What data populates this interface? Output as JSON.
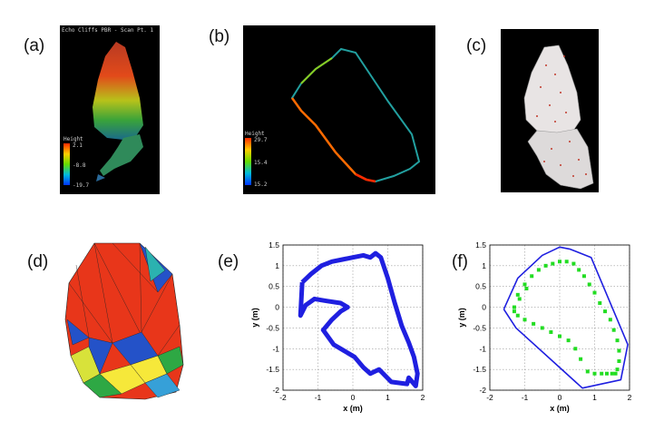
{
  "figure": {
    "panels": [
      {
        "label": "(a)",
        "title": "Echo Cliffs PBR - Scan Pt. 1",
        "colorbar": {
          "label": "Height",
          "ticks": [
            "2.1",
            "-8.8",
            "-19.7"
          ]
        }
      },
      {
        "label": "(b)",
        "colorbar": {
          "label": "Height",
          "ticks": [
            "29.7",
            "15.4",
            "15.2"
          ]
        }
      },
      {
        "label": "(c)"
      },
      {
        "label": "(d)"
      },
      {
        "label": "(e)"
      },
      {
        "label": "(f)"
      }
    ]
  },
  "chart_data": [
    {
      "type": "line",
      "panel": "(e)",
      "xlabel": "x (m)",
      "ylabel": "y (m)",
      "xlim": [
        -2,
        2
      ],
      "ylim": [
        -2,
        1.5
      ],
      "xticks": [
        -2,
        -1,
        0,
        1,
        2
      ],
      "yticks": [
        1.5,
        1,
        0.5,
        0,
        -0.5,
        -1,
        -1.5,
        -2
      ],
      "grid": true,
      "series": [
        {
          "color": "#1f1fe0",
          "x": [
            -1.45,
            -1.2,
            -0.9,
            -0.6,
            -0.3,
            0.0,
            0.3,
            0.5,
            0.65,
            0.8,
            1.0,
            1.2,
            1.4,
            1.6,
            1.75,
            1.85,
            1.8,
            1.7,
            1.6,
            1.55,
            1.1,
            0.75,
            0.5,
            0.3,
            0.05,
            -0.25,
            -0.55,
            -0.85,
            -0.6,
            -0.35,
            -0.15,
            -0.35,
            -0.75,
            -1.1,
            -1.35,
            -1.5,
            -1.45
          ],
          "y": [
            0.6,
            0.8,
            1.0,
            1.1,
            1.15,
            1.2,
            1.25,
            1.2,
            1.3,
            1.2,
            0.7,
            0.1,
            -0.45,
            -0.85,
            -1.2,
            -1.6,
            -1.9,
            -1.8,
            -1.7,
            -1.85,
            -1.8,
            -1.5,
            -1.6,
            -1.45,
            -1.2,
            -1.05,
            -0.9,
            -0.55,
            -0.3,
            -0.1,
            0.0,
            0.1,
            0.15,
            0.2,
            0.05,
            -0.2,
            0.6
          ]
        }
      ]
    },
    {
      "type": "scatter",
      "panel": "(f)",
      "xlabel": "x (m)",
      "ylabel": "y (m)",
      "xlim": [
        -2,
        2
      ],
      "ylim": [
        -2,
        1.5
      ],
      "xticks": [
        -2,
        -1,
        0,
        1,
        2
      ],
      "yticks": [
        1.5,
        1,
        0.5,
        0,
        -0.5,
        -1,
        -1.5,
        -2
      ],
      "grid": true,
      "series": [
        {
          "type": "line",
          "color": "#1f1fe0",
          "x": [
            -1.6,
            -1.2,
            -0.5,
            0.0,
            0.3,
            0.9,
            1.6,
            1.95,
            1.75,
            0.65,
            -1.25,
            -1.6
          ],
          "y": [
            -0.05,
            0.7,
            1.25,
            1.45,
            1.4,
            1.2,
            -0.2,
            -0.9,
            -1.75,
            -1.95,
            -0.5,
            -0.05
          ]
        },
        {
          "type": "scatter",
          "color": "#22dd22",
          "x": [
            -1.3,
            -1.2,
            -1.0,
            -0.8,
            -0.6,
            -0.4,
            -0.2,
            0.0,
            0.2,
            0.4,
            0.55,
            0.7,
            0.85,
            1.0,
            1.15,
            1.3,
            1.45,
            1.55,
            1.65,
            1.7,
            1.7,
            1.65,
            1.6,
            1.5,
            1.35,
            1.2,
            1.0,
            0.8,
            0.6,
            0.45,
            0.25,
            0.0,
            -0.25,
            -0.5,
            -0.75,
            -1.0,
            -1.2,
            -1.3,
            -1.15,
            -0.95
          ],
          "y": [
            0.0,
            0.3,
            0.55,
            0.75,
            0.9,
            1.0,
            1.05,
            1.1,
            1.1,
            1.05,
            0.9,
            0.75,
            0.55,
            0.35,
            0.1,
            -0.1,
            -0.3,
            -0.55,
            -0.8,
            -1.05,
            -1.3,
            -1.5,
            -1.6,
            -1.6,
            -1.6,
            -1.6,
            -1.6,
            -1.55,
            -1.25,
            -1.0,
            -0.8,
            -0.7,
            -0.6,
            -0.5,
            -0.4,
            -0.3,
            -0.2,
            -0.1,
            0.2,
            0.45
          ]
        }
      ]
    }
  ]
}
